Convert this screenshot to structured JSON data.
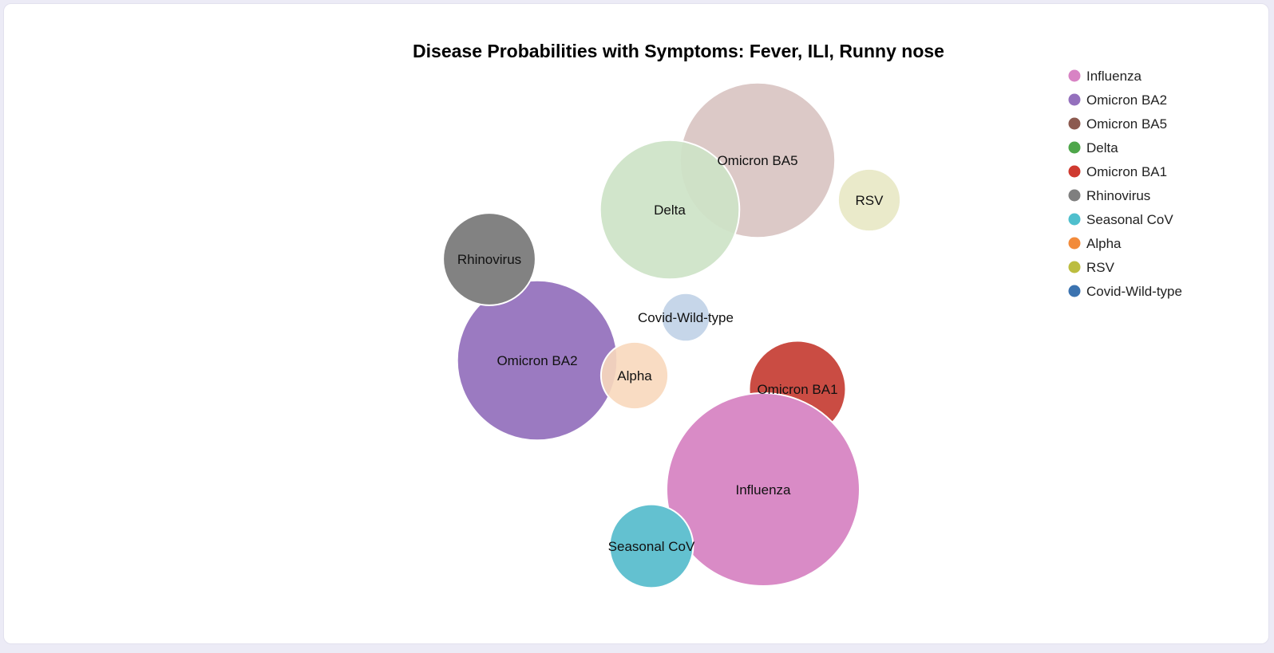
{
  "chart_data": {
    "type": "bubble",
    "title": "Disease Probabilities with Symptoms: Fever, ILI, Runny nose",
    "legend_placement": "top-right",
    "series": [
      {
        "name": "Influenza",
        "color": "#d98bc6",
        "opacity": 1.0,
        "value": 0.24
      },
      {
        "name": "Omicron BA2",
        "color": "#9b7ac1",
        "opacity": 1.0,
        "value": 0.165
      },
      {
        "name": "Omicron BA5",
        "color": "#dcc9c7",
        "opacity": 1.0,
        "value": 0.155
      },
      {
        "name": "Delta",
        "color": "#cde3c7",
        "opacity": 0.92,
        "value": 0.125
      },
      {
        "name": "Omicron BA1",
        "color": "#c63d33",
        "opacity": 0.92,
        "value": 0.06
      },
      {
        "name": "Rhinovirus",
        "color": "#828282",
        "opacity": 1.0,
        "value": 0.055
      },
      {
        "name": "Seasonal CoV",
        "color": "#63c1d0",
        "opacity": 1.0,
        "value": 0.045
      },
      {
        "name": "Alpha",
        "color": "#f8d8bd",
        "opacity": 0.9,
        "value": 0.029
      },
      {
        "name": "RSV",
        "color": "#eaeaca",
        "opacity": 1.0,
        "value": 0.025
      },
      {
        "name": "Covid-Wild-type",
        "color": "#c3d4e8",
        "opacity": 0.95,
        "value": 0.015
      }
    ],
    "legend": [
      {
        "name": "Influenza",
        "color": "#d883c4"
      },
      {
        "name": "Omicron BA2",
        "color": "#9470bd"
      },
      {
        "name": "Omicron BA5",
        "color": "#8c5a4f"
      },
      {
        "name": "Delta",
        "color": "#4ea64a"
      },
      {
        "name": "Omicron BA1",
        "color": "#cf3a30"
      },
      {
        "name": "Rhinovirus",
        "color": "#7f7f7f"
      },
      {
        "name": "Seasonal CoV",
        "color": "#4fbfcd"
      },
      {
        "name": "Alpha",
        "color": "#f28b3b"
      },
      {
        "name": "RSV",
        "color": "#bcbd3f"
      },
      {
        "name": "Covid-Wild-type",
        "color": "#3b73b0"
      }
    ]
  }
}
